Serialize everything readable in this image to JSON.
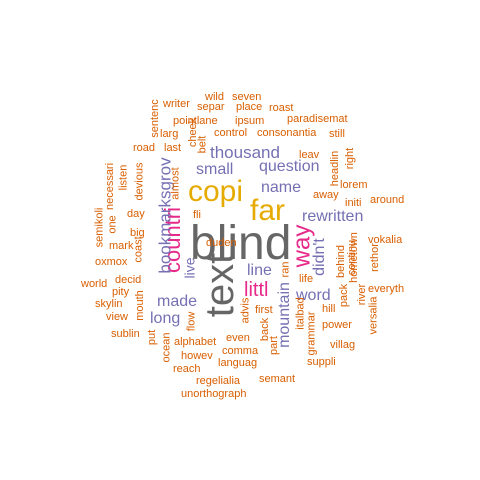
{
  "wordcloud": {
    "colors": {
      "dark": "#666666",
      "gold": "#e6ab02",
      "pink": "#e7298a",
      "purple": "#7570b3",
      "orange": "#d95f02"
    },
    "words": [
      {
        "text": "blind",
        "color": "dark",
        "rotated": false
      },
      {
        "text": "text",
        "color": "dark",
        "rotated": true
      },
      {
        "text": "copi",
        "color": "gold",
        "rotated": false
      },
      {
        "text": "far",
        "color": "gold",
        "rotated": false
      },
      {
        "text": "way",
        "color": "pink",
        "rotated": true
      },
      {
        "text": "countri",
        "color": "pink",
        "rotated": true
      },
      {
        "text": "littl",
        "color": "pink",
        "rotated": false
      },
      {
        "text": "bookmarksgrov",
        "color": "purple",
        "rotated": true
      },
      {
        "text": "thousand",
        "color": "purple",
        "rotated": false
      },
      {
        "text": "small",
        "color": "purple",
        "rotated": false
      },
      {
        "text": "question",
        "color": "purple",
        "rotated": false
      },
      {
        "text": "name",
        "color": "purple",
        "rotated": false
      },
      {
        "text": "rewritten",
        "color": "purple",
        "rotated": false
      },
      {
        "text": "line",
        "color": "purple",
        "rotated": false
      },
      {
        "text": "word",
        "color": "purple",
        "rotated": false
      },
      {
        "text": "mountain",
        "color": "purple",
        "rotated": true
      },
      {
        "text": "made",
        "color": "purple",
        "rotated": false
      },
      {
        "text": "long",
        "color": "purple",
        "rotated": false
      },
      {
        "text": "didn't",
        "color": "purple",
        "rotated": true
      },
      {
        "text": "live",
        "color": "purple",
        "rotated": true
      },
      {
        "text": "wild",
        "color": "orange",
        "rotated": false
      },
      {
        "text": "seven",
        "color": "orange",
        "rotated": false
      },
      {
        "text": "writer",
        "color": "orange",
        "rotated": false
      },
      {
        "text": "separ",
        "color": "orange",
        "rotated": false
      },
      {
        "text": "place",
        "color": "orange",
        "rotated": false
      },
      {
        "text": "roast",
        "color": "orange",
        "rotated": false
      },
      {
        "text": "sentenc",
        "color": "orange",
        "rotated": true
      },
      {
        "text": "pointlane",
        "color": "orange",
        "rotated": false
      },
      {
        "text": "ipsum",
        "color": "orange",
        "rotated": false
      },
      {
        "text": "paradisemat",
        "color": "orange",
        "rotated": false
      },
      {
        "text": "larg",
        "color": "orange",
        "rotated": false
      },
      {
        "text": "cheek",
        "color": "orange",
        "rotated": true
      },
      {
        "text": "control",
        "color": "orange",
        "rotated": false
      },
      {
        "text": "consonantia",
        "color": "orange",
        "rotated": false
      },
      {
        "text": "still",
        "color": "orange",
        "rotated": false
      },
      {
        "text": "road",
        "color": "orange",
        "rotated": false
      },
      {
        "text": "last",
        "color": "orange",
        "rotated": false
      },
      {
        "text": "belt",
        "color": "orange",
        "rotated": true
      },
      {
        "text": "leav",
        "color": "orange",
        "rotated": false
      },
      {
        "text": "right",
        "color": "orange",
        "rotated": true
      },
      {
        "text": "necessari",
        "color": "orange",
        "rotated": true
      },
      {
        "text": "listen",
        "color": "orange",
        "rotated": true
      },
      {
        "text": "devious",
        "color": "orange",
        "rotated": true
      },
      {
        "text": "almost",
        "color": "orange",
        "rotated": true
      },
      {
        "text": "headlin",
        "color": "orange",
        "rotated": true
      },
      {
        "text": "lorem",
        "color": "orange",
        "rotated": false
      },
      {
        "text": "away",
        "color": "orange",
        "rotated": false
      },
      {
        "text": "initi",
        "color": "orange",
        "rotated": false
      },
      {
        "text": "around",
        "color": "orange",
        "rotated": false
      },
      {
        "text": "semikoli",
        "color": "orange",
        "rotated": true
      },
      {
        "text": "one",
        "color": "orange",
        "rotated": true
      },
      {
        "text": "day",
        "color": "orange",
        "rotated": false
      },
      {
        "text": "fli",
        "color": "orange",
        "rotated": false
      },
      {
        "text": "duden",
        "color": "orange",
        "rotated": false
      },
      {
        "text": "big",
        "color": "orange",
        "rotated": false
      },
      {
        "text": "coast",
        "color": "orange",
        "rotated": true
      },
      {
        "text": "mark",
        "color": "orange",
        "rotated": false
      },
      {
        "text": "vokalia",
        "color": "orange",
        "rotated": false
      },
      {
        "text": "oxmox",
        "color": "orange",
        "rotated": false
      },
      {
        "text": "decid",
        "color": "orange",
        "rotated": false
      },
      {
        "text": "world",
        "color": "orange",
        "rotated": false
      },
      {
        "text": "pity",
        "color": "orange",
        "rotated": false
      },
      {
        "text": "skylin",
        "color": "orange",
        "rotated": false
      },
      {
        "text": "view",
        "color": "orange",
        "rotated": false
      },
      {
        "text": "sublin",
        "color": "orange",
        "rotated": false
      },
      {
        "text": "mouth",
        "color": "orange",
        "rotated": true
      },
      {
        "text": "put",
        "color": "orange",
        "rotated": true
      },
      {
        "text": "ocean",
        "color": "orange",
        "rotated": true
      },
      {
        "text": "flow",
        "color": "orange",
        "rotated": true
      },
      {
        "text": "advis",
        "color": "orange",
        "rotated": true
      },
      {
        "text": "ran",
        "color": "orange",
        "rotated": true
      },
      {
        "text": "life",
        "color": "orange",
        "rotated": false
      },
      {
        "text": "behind",
        "color": "orange",
        "rotated": true
      },
      {
        "text": "continu",
        "color": "orange",
        "rotated": true
      },
      {
        "text": "hometown",
        "color": "orange",
        "rotated": true
      },
      {
        "text": "rethor",
        "color": "orange",
        "rotated": true
      },
      {
        "text": "everyth",
        "color": "orange",
        "rotated": false
      },
      {
        "text": "pack",
        "color": "orange",
        "rotated": true
      },
      {
        "text": "river",
        "color": "orange",
        "rotated": true
      },
      {
        "text": "versalia",
        "color": "orange",
        "rotated": true
      },
      {
        "text": "first",
        "color": "orange",
        "rotated": false
      },
      {
        "text": "italbad",
        "color": "orange",
        "rotated": true
      },
      {
        "text": "hill",
        "color": "orange",
        "rotated": false
      },
      {
        "text": "back",
        "color": "orange",
        "rotated": true
      },
      {
        "text": "grammar",
        "color": "orange",
        "rotated": true
      },
      {
        "text": "power",
        "color": "orange",
        "rotated": false
      },
      {
        "text": "alphabet",
        "color": "orange",
        "rotated": false
      },
      {
        "text": "even",
        "color": "orange",
        "rotated": false
      },
      {
        "text": "part",
        "color": "orange",
        "rotated": true
      },
      {
        "text": "villag",
        "color": "orange",
        "rotated": false
      },
      {
        "text": "comma",
        "color": "orange",
        "rotated": false
      },
      {
        "text": "howev",
        "color": "orange",
        "rotated": false
      },
      {
        "text": "languag",
        "color": "orange",
        "rotated": false
      },
      {
        "text": "suppli",
        "color": "orange",
        "rotated": false
      },
      {
        "text": "reach",
        "color": "orange",
        "rotated": false
      },
      {
        "text": "regelialia",
        "color": "orange",
        "rotated": false
      },
      {
        "text": "semant",
        "color": "orange",
        "rotated": false
      },
      {
        "text": "unorthograph",
        "color": "orange",
        "rotated": false
      }
    ]
  }
}
